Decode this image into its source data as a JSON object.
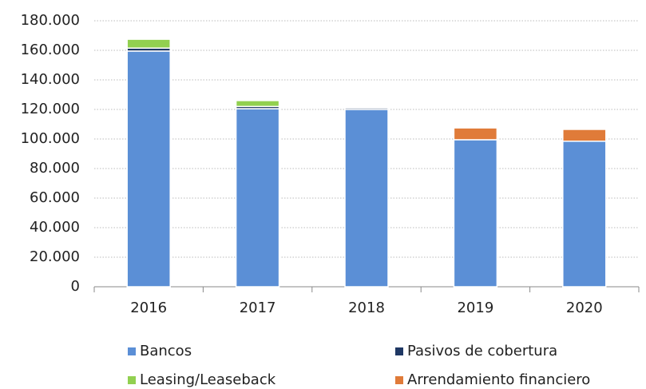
{
  "chart_data": {
    "type": "stacked_bar",
    "categories": [
      "2016",
      "2017",
      "2018",
      "2019",
      "2020"
    ],
    "series": [
      {
        "name": "Bancos",
        "color": "#5b8fd6",
        "values": [
          159500,
          120500,
          120000,
          99500,
          98500
        ]
      },
      {
        "name": "Pasivos de cobertura",
        "color": "#1f3864",
        "values": [
          2000,
          1500,
          1000,
          0,
          0
        ]
      },
      {
        "name": "Leasing/Leaseback",
        "color": "#92d050",
        "values": [
          6000,
          4000,
          0,
          0,
          0
        ]
      },
      {
        "name": "Arrendamiento financiero",
        "color": "#e07b39",
        "values": [
          0,
          0,
          0,
          8000,
          8000
        ]
      }
    ],
    "ylim": [
      0,
      180000
    ],
    "yticks": [
      0,
      {
        "value": 20000,
        "label": "20.000"
      },
      {
        "value": 40000,
        "label": "40.000"
      },
      {
        "value": 60000,
        "label": "60.000"
      },
      {
        "value": 80000,
        "label": "80.000"
      },
      {
        "value": 100000,
        "label": "100.000"
      },
      {
        "value": 120000,
        "label": "120.000"
      },
      {
        "value": 140000,
        "label": "140.000"
      },
      {
        "value": 160000,
        "label": "160.000"
      },
      {
        "value": 180000,
        "label": "180.000"
      }
    ],
    "grid": true
  }
}
